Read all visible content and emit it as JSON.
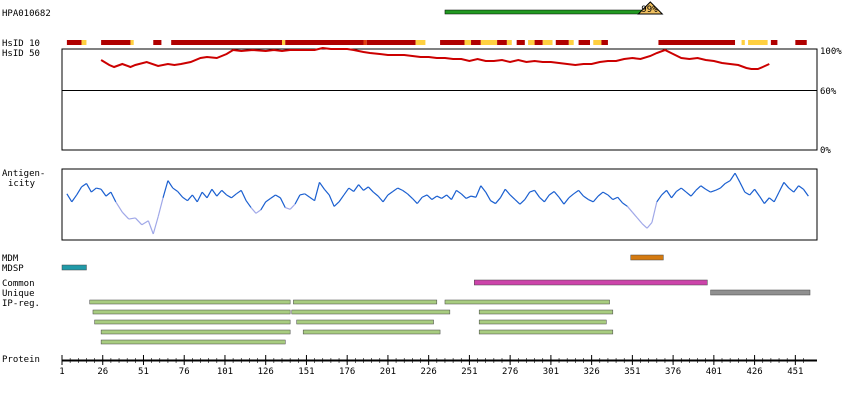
{
  "chart_data": {
    "type": "protein-feature-map",
    "antibody_id": "HPA010682",
    "top_bar": {
      "start": 236,
      "end": 362,
      "color": "#229922",
      "identity_badge": "99%"
    },
    "labels": {
      "hsid10": "HsID 10",
      "hsid50": "HsID 50",
      "antigenicity_1": "Antigen-",
      "antigenicity_2": "icity",
      "mdm": "MDM",
      "mdsp": "MDSP",
      "common": "Common",
      "unique": "Unique",
      "ipreg": "IP-reg.",
      "protein": "Protein"
    },
    "identity_axis": {
      "ticks": [
        "100%",
        "60%",
        "0%"
      ],
      "values": [
        100,
        60,
        0
      ]
    },
    "x_axis": {
      "min": 1,
      "max": 460,
      "ticks": [
        1,
        26,
        51,
        76,
        101,
        126,
        151,
        176,
        201,
        226,
        251,
        276,
        301,
        326,
        351,
        376,
        401,
        426,
        451
      ],
      "tick_labels": [
        "1",
        "26",
        "51",
        "76",
        "101",
        "126",
        "151",
        "176",
        "201",
        "226",
        "251",
        "276",
        "301",
        "326",
        "351",
        "376",
        "401",
        "426",
        "451"
      ]
    },
    "colors": {
      "high": "#b00000",
      "mid": "#e04010",
      "low": "#ffd040",
      "identity_line": "#cc0000",
      "antigen_high": "#1a5fd0",
      "antigen_low": "#a0a8e8"
    },
    "hsid10_segments": [
      {
        "start": 4,
        "end": 13,
        "level": "high"
      },
      {
        "start": 13,
        "end": 16,
        "level": "low"
      },
      {
        "start": 25,
        "end": 43,
        "level": "high"
      },
      {
        "start": 43,
        "end": 45,
        "level": "low"
      },
      {
        "start": 57,
        "end": 62,
        "level": "high"
      },
      {
        "start": 68,
        "end": 136,
        "level": "high"
      },
      {
        "start": 136,
        "end": 138,
        "level": "low"
      },
      {
        "start": 138,
        "end": 186,
        "level": "high"
      },
      {
        "start": 186,
        "end": 188,
        "level": "mid"
      },
      {
        "start": 188,
        "end": 218,
        "level": "high"
      },
      {
        "start": 218,
        "end": 224,
        "level": "low"
      },
      {
        "start": 233,
        "end": 248,
        "level": "high"
      },
      {
        "start": 248,
        "end": 252,
        "level": "low"
      },
      {
        "start": 252,
        "end": 258,
        "level": "high"
      },
      {
        "start": 258,
        "end": 268,
        "level": "low"
      },
      {
        "start": 268,
        "end": 274,
        "level": "high"
      },
      {
        "start": 274,
        "end": 277,
        "level": "low"
      },
      {
        "start": 280,
        "end": 285,
        "level": "high"
      },
      {
        "start": 287,
        "end": 291,
        "level": "low"
      },
      {
        "start": 291,
        "end": 296,
        "level": "high"
      },
      {
        "start": 296,
        "end": 302,
        "level": "low"
      },
      {
        "start": 304,
        "end": 312,
        "level": "high"
      },
      {
        "start": 312,
        "end": 315,
        "level": "low"
      },
      {
        "start": 318,
        "end": 325,
        "level": "high"
      },
      {
        "start": 327,
        "end": 332,
        "level": "low"
      },
      {
        "start": 332,
        "end": 336,
        "level": "high"
      },
      {
        "start": 367,
        "end": 414,
        "level": "high"
      },
      {
        "start": 418,
        "end": 420,
        "level": "low"
      },
      {
        "start": 422,
        "end": 434,
        "level": "low"
      },
      {
        "start": 436,
        "end": 440,
        "level": "high"
      },
      {
        "start": 451,
        "end": 458,
        "level": "high"
      }
    ],
    "hsid50": {
      "x": [
        25,
        30,
        33,
        38,
        43,
        46,
        53,
        60,
        66,
        70,
        74,
        80,
        86,
        90,
        96,
        102,
        106,
        111,
        118,
        126,
        131,
        136,
        141,
        148,
        156,
        161,
        166,
        171,
        176,
        180,
        186,
        190,
        196,
        201,
        206,
        211,
        216,
        221,
        226,
        231,
        236,
        241,
        246,
        251,
        256,
        261,
        266,
        271,
        276,
        281,
        286,
        291,
        296,
        301,
        306,
        311,
        316,
        321,
        326,
        331,
        336,
        341,
        346,
        351,
        356,
        362,
        366,
        371,
        376,
        381,
        386,
        391,
        396,
        401,
        406,
        411,
        416,
        421,
        424,
        428,
        431,
        435
      ],
      "y": [
        90,
        85,
        83,
        86,
        83,
        85,
        88,
        84,
        86,
        85,
        86,
        88,
        92,
        93,
        92,
        96,
        100,
        99,
        100,
        99,
        100,
        99,
        100,
        100,
        100,
        102,
        101,
        101,
        101,
        100,
        98,
        97,
        96,
        95,
        95,
        95,
        94,
        93,
        93,
        92,
        92,
        91,
        91,
        89,
        91,
        89,
        89,
        90,
        88,
        90,
        88,
        89,
        88,
        88,
        87,
        86,
        85,
        86,
        86,
        88,
        89,
        89,
        91,
        92,
        91,
        94,
        97,
        100,
        96,
        92,
        91,
        92,
        90,
        89,
        87,
        86,
        85,
        82,
        81,
        81,
        83,
        86
      ]
    },
    "antigenicity": {
      "x": [
        4,
        7,
        10,
        13,
        16,
        19,
        22,
        25,
        28,
        31,
        34,
        38,
        42,
        46,
        50,
        54,
        57,
        60,
        63,
        66,
        69,
        72,
        75,
        78,
        81,
        84,
        87,
        90,
        93,
        96,
        99,
        102,
        105,
        108,
        111,
        114,
        117,
        120,
        123,
        126,
        129,
        132,
        135,
        138,
        141,
        144,
        147,
        150,
        153,
        156,
        159,
        162,
        165,
        168,
        171,
        174,
        177,
        180,
        183,
        186,
        189,
        192,
        195,
        198,
        201,
        204,
        207,
        210,
        213,
        216,
        219,
        222,
        225,
        228,
        231,
        234,
        237,
        240,
        243,
        246,
        249,
        252,
        255,
        258,
        261,
        264,
        267,
        270,
        273,
        276,
        279,
        282,
        285,
        288,
        291,
        294,
        297,
        300,
        303,
        306,
        309,
        312,
        315,
        318,
        321,
        324,
        327,
        330,
        333,
        336,
        339,
        342,
        345,
        348,
        351,
        354,
        357,
        360,
        363,
        366,
        369,
        372,
        375,
        378,
        381,
        384,
        387,
        390,
        393,
        396,
        399,
        402,
        405,
        408,
        411,
        414,
        417,
        420,
        423,
        426,
        429,
        432,
        435,
        438,
        441,
        444,
        447,
        450,
        453,
        456,
        459
      ],
      "y": [
        0.52,
        0.38,
        0.5,
        0.64,
        0.7,
        0.55,
        0.62,
        0.6,
        0.48,
        0.55,
        0.38,
        0.2,
        0.08,
        0.1,
        -0.02,
        0.05,
        -0.18,
        0.12,
        0.45,
        0.75,
        0.62,
        0.56,
        0.46,
        0.4,
        0.5,
        0.38,
        0.55,
        0.45,
        0.6,
        0.48,
        0.58,
        0.5,
        0.45,
        0.52,
        0.58,
        0.4,
        0.28,
        0.18,
        0.24,
        0.38,
        0.44,
        0.5,
        0.45,
        0.28,
        0.25,
        0.34,
        0.5,
        0.52,
        0.46,
        0.4,
        0.72,
        0.6,
        0.5,
        0.3,
        0.38,
        0.5,
        0.62,
        0.56,
        0.68,
        0.58,
        0.64,
        0.55,
        0.48,
        0.38,
        0.5,
        0.56,
        0.62,
        0.58,
        0.52,
        0.44,
        0.35,
        0.46,
        0.5,
        0.42,
        0.48,
        0.44,
        0.5,
        0.42,
        0.58,
        0.52,
        0.44,
        0.48,
        0.46,
        0.66,
        0.55,
        0.4,
        0.35,
        0.45,
        0.6,
        0.5,
        0.42,
        0.34,
        0.42,
        0.55,
        0.58,
        0.46,
        0.38,
        0.5,
        0.56,
        0.46,
        0.34,
        0.45,
        0.52,
        0.58,
        0.48,
        0.42,
        0.38,
        0.48,
        0.55,
        0.5,
        0.42,
        0.46,
        0.36,
        0.3,
        0.2,
        0.1,
        0.0,
        -0.08,
        0.02,
        0.38,
        0.5,
        0.58,
        0.45,
        0.56,
        0.62,
        0.55,
        0.48,
        0.58,
        0.66,
        0.6,
        0.55,
        0.58,
        0.62,
        0.7,
        0.75,
        0.88,
        0.72,
        0.55,
        0.5,
        0.6,
        0.48,
        0.35,
        0.45,
        0.38,
        0.55,
        0.72,
        0.62,
        0.55,
        0.66,
        0.6,
        0.48
      ]
    },
    "tracks": {
      "mdm": [
        {
          "start": 350,
          "end": 370,
          "color": "#d47a10"
        }
      ],
      "mdsp": [
        {
          "start": 1,
          "end": 16,
          "color": "#209aa8"
        }
      ],
      "common": [
        {
          "start": 254,
          "end": 397,
          "color": "#cc44aa"
        }
      ],
      "unique": [
        {
          "start": 399,
          "end": 460,
          "color": "#909090"
        }
      ],
      "ipreg": [
        {
          "start": 18,
          "end": 141,
          "row": 0
        },
        {
          "start": 20,
          "end": 141,
          "row": 1
        },
        {
          "start": 21,
          "end": 141,
          "row": 2
        },
        {
          "start": 25,
          "end": 141,
          "row": 3
        },
        {
          "start": 25,
          "end": 138,
          "row": 4
        },
        {
          "start": 143,
          "end": 231,
          "row": 0
        },
        {
          "start": 142,
          "end": 239,
          "row": 1
        },
        {
          "start": 145,
          "end": 229,
          "row": 2
        },
        {
          "start": 149,
          "end": 233,
          "row": 3
        },
        {
          "start": 236,
          "end": 337,
          "row": 0
        },
        {
          "start": 257,
          "end": 339,
          "row": 1
        },
        {
          "start": 257,
          "end": 335,
          "row": 2
        },
        {
          "start": 257,
          "end": 339,
          "row": 3
        }
      ],
      "ipreg_color": "#a8cc80"
    }
  }
}
